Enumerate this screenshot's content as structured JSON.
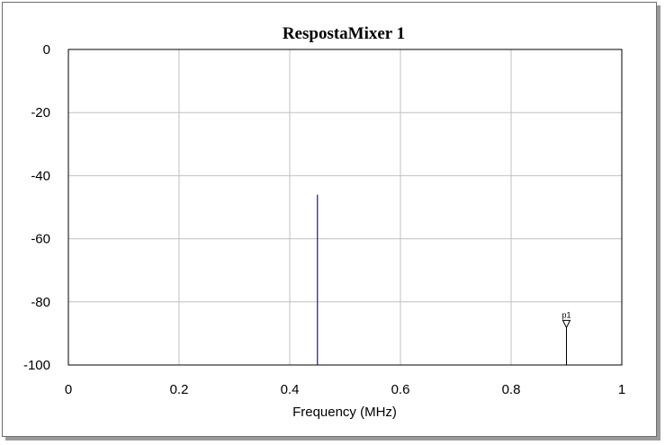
{
  "chart_data": {
    "type": "bar",
    "title": "RespostaMixer 1",
    "xlabel": "Frequency (MHz)",
    "ylabel": "",
    "xlim": [
      0,
      1
    ],
    "ylim": [
      -100,
      0
    ],
    "x_ticks": [
      "0",
      "0.2",
      "0.4",
      "0.6",
      "0.8",
      "1"
    ],
    "y_ticks": [
      "0",
      "-20",
      "-40",
      "-60",
      "-80",
      "-100"
    ],
    "grid": true,
    "series": [
      {
        "x": [
          0.45,
          0.9
        ],
        "values": [
          -46,
          -100
        ]
      }
    ],
    "markers": [
      {
        "label": "p1",
        "x": 0.9,
        "y": -87
      }
    ],
    "colors": {
      "series": "#1a1a80",
      "grid": "#c0c0c0",
      "marker": "#000000"
    }
  }
}
